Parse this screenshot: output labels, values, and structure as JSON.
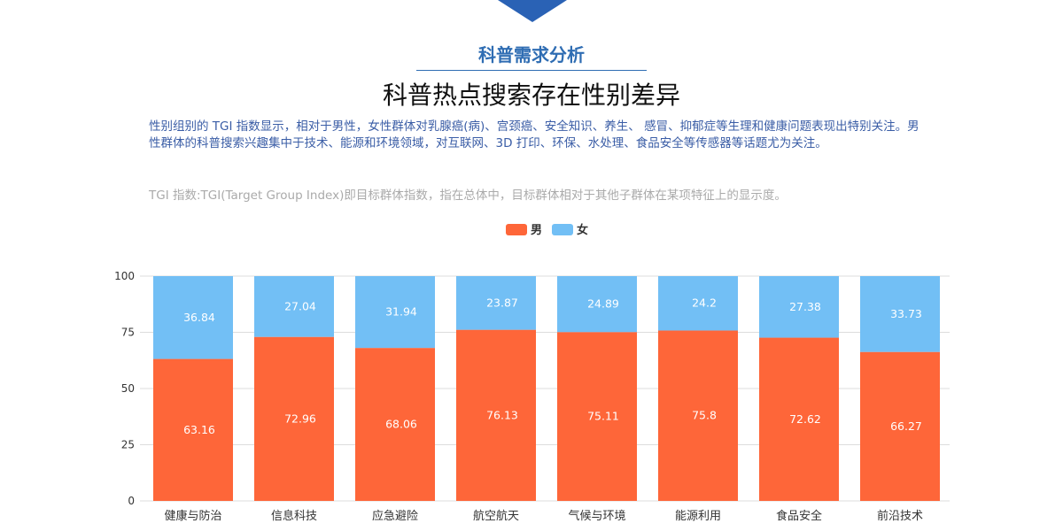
{
  "header": {
    "section_title": "科普需求分析",
    "title": "科普热点搜索存在性别差异",
    "description": "性别组别的 TGI 指数显示，相对于男性，女性群体对乳腺癌(病)、宫颈癌、安全知识、养生、 感冒、抑郁症等生理和健康问题表现出特别关注。男性群体的科普搜索兴趣集中于技术、能源和环境领域，对互联网、3D 打印、环保、水处理、食品安全等传感器等话题尤为关注。",
    "note": "TGI 指数:TGI(Target Group Index)即目标群体指数，指在总体中，目标群体相对于其他子群体在某项特征上的显示度。",
    "accent_color": "#2a62b5"
  },
  "chart_data": {
    "type": "bar",
    "stacked": true,
    "categories": [
      "健康与防治",
      "信息科技",
      "应急避险",
      "航空航天",
      "气候与环境",
      "能源利用",
      "食品安全",
      "前沿技术"
    ],
    "series": [
      {
        "name": "男",
        "color": "#fe6639",
        "values": [
          63.16,
          72.96,
          68.06,
          76.13,
          75.11,
          75.8,
          72.62,
          66.27
        ],
        "labels": [
          "63.16",
          "72.96",
          "68.06",
          "76.13",
          "75.11",
          "75.8",
          "72.62",
          "66.27"
        ]
      },
      {
        "name": "女",
        "color": "#72bff5",
        "values": [
          36.84,
          27.04,
          31.94,
          23.87,
          24.89,
          24.2,
          27.38,
          33.73
        ],
        "labels": [
          "36.84",
          "27.04",
          "31.94",
          "23.87",
          "24.89",
          "24.2",
          "27.38",
          "33.73"
        ]
      }
    ],
    "ylim": [
      0,
      100
    ],
    "yticks": [
      "0",
      "25",
      "50",
      "75",
      "100"
    ],
    "grid": true,
    "legend": "top-center"
  }
}
